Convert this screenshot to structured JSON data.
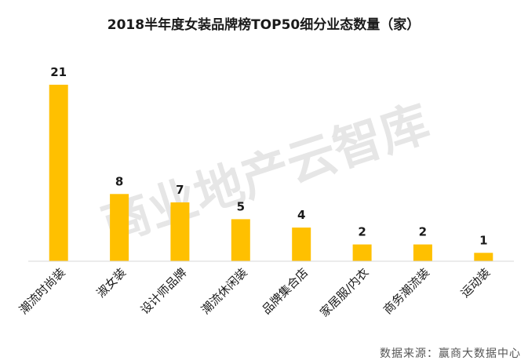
{
  "chart_data": {
    "type": "bar",
    "title": "2018半年度女装品牌榜TOP50细分业态数量（家）",
    "categories": [
      "潮流时尚装",
      "淑女装",
      "设计师品牌",
      "潮流休闲装",
      "品牌集合店",
      "家居服/内衣",
      "商务潮流装",
      "运动装"
    ],
    "values": [
      21,
      8,
      7,
      5,
      4,
      2,
      2,
      1
    ],
    "xlabel": "",
    "ylabel": "",
    "ylim": [
      0,
      21
    ],
    "grid": false,
    "legend": "none",
    "bar_color": "#FFC000",
    "axis_color": "#D9D9D9"
  },
  "watermark": "商业地产云智库",
  "source": "数据来源：赢商大数据中心"
}
